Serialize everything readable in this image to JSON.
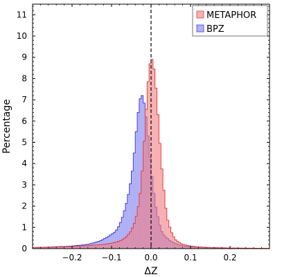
{
  "chart_data": {
    "type": "histogram",
    "xlabel": "ΔZ",
    "ylabel": "Percentage",
    "xlim": [
      -0.3,
      0.3
    ],
    "ylim": [
      0,
      11.5
    ],
    "xticks": [
      -0.2,
      -0.1,
      0.0,
      0.1,
      0.2
    ],
    "xtick_labels": [
      "−0.2",
      "−0.1",
      "0.0",
      "0.1",
      "0.2"
    ],
    "yticks": [
      0,
      1,
      2,
      3,
      4,
      5,
      6,
      7,
      8,
      9,
      10,
      11
    ],
    "ytick_labels": [
      "0",
      "1",
      "2",
      "3",
      "4",
      "5",
      "6",
      "7",
      "8",
      "9",
      "10",
      "11"
    ],
    "reference_line": {
      "x": 0.0,
      "style": "dashed",
      "color": "#000000"
    },
    "legend": {
      "position": "top-right"
    },
    "bin_width": 0.005,
    "x_range": [
      -0.3,
      0.3
    ],
    "series": [
      {
        "name": "METAPHOR",
        "fill": "#f27f84",
        "fill_opacity": 0.6,
        "edge": "#e0403f",
        "centers": [
          -0.3,
          -0.25,
          -0.2,
          -0.15,
          -0.12,
          -0.1,
          -0.08,
          -0.07,
          -0.06,
          -0.05,
          -0.04,
          -0.03,
          -0.025,
          -0.02,
          -0.015,
          -0.01,
          -0.005,
          0.0,
          0.005,
          0.01,
          0.015,
          0.02,
          0.025,
          0.03,
          0.035,
          0.04,
          0.05,
          0.06,
          0.07,
          0.08,
          0.1,
          0.12,
          0.15,
          0.2,
          0.25,
          0.3
        ],
        "values": [
          0.05,
          0.07,
          0.1,
          0.15,
          0.2,
          0.25,
          0.35,
          0.45,
          0.6,
          0.85,
          1.3,
          2.2,
          3.0,
          4.3,
          5.8,
          7.3,
          8.4,
          9.0,
          8.8,
          8.1,
          7.0,
          5.6,
          4.3,
          3.2,
          2.3,
          1.5,
          0.85,
          0.45,
          0.3,
          0.2,
          0.12,
          0.08,
          0.05,
          0.03,
          0.02,
          0.01
        ]
      },
      {
        "name": "BPZ",
        "fill": "#7f7ff2",
        "fill_opacity": 0.6,
        "edge": "#4040d0",
        "centers": [
          -0.3,
          -0.25,
          -0.2,
          -0.16,
          -0.13,
          -0.11,
          -0.09,
          -0.08,
          -0.07,
          -0.06,
          -0.05,
          -0.045,
          -0.04,
          -0.035,
          -0.03,
          -0.025,
          -0.02,
          -0.015,
          -0.01,
          -0.005,
          0.0,
          0.005,
          0.01,
          0.015,
          0.02,
          0.025,
          0.03,
          0.04,
          0.05,
          0.06,
          0.07,
          0.08,
          0.1,
          0.12,
          0.15,
          0.2,
          0.25,
          0.3
        ],
        "values": [
          0.05,
          0.08,
          0.12,
          0.2,
          0.35,
          0.55,
          0.8,
          1.1,
          1.6,
          2.3,
          3.3,
          4.0,
          5.0,
          6.0,
          6.8,
          7.3,
          7.1,
          6.6,
          5.8,
          4.8,
          3.8,
          3.0,
          2.2,
          1.7,
          1.3,
          0.9,
          0.7,
          0.5,
          0.35,
          0.25,
          0.18,
          0.13,
          0.08,
          0.06,
          0.04,
          0.02,
          0.01,
          0.01
        ]
      }
    ]
  }
}
